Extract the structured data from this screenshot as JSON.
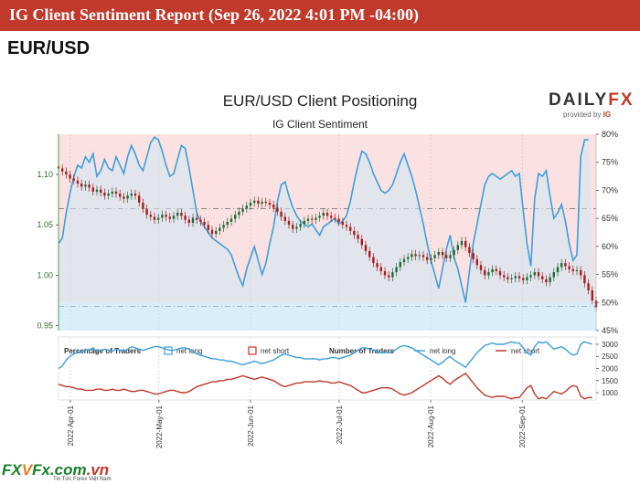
{
  "header": {
    "report_title": "IG Client Sentiment Report (Sep 26, 2022 4:01 PM -04:00)",
    "pair": "EUR/USD"
  },
  "logo": {
    "word_a": "DAILY",
    "word_b": "FX",
    "provided_by": "provided by",
    "ig": "IG"
  },
  "footer": {
    "brand_a": "FX",
    "brand_x": "V",
    "brand_b": "Fx.com",
    "brand_dom": ".vn",
    "tagline": "Tin Tức Forex Việt Nam"
  },
  "colors": {
    "long": "#3d9fd9",
    "short": "#c0392b",
    "bull_candle": "#1b6b3a",
    "bear_candle": "#a31d1d",
    "long_zone": "#e3f3fc",
    "short_zone": "#fbe1e1"
  },
  "chart_data": [
    {
      "type": "candlestick+line",
      "title": "EUR/USD Client Positioning",
      "subtitle": "IG Client Sentiment",
      "x_start": "2022-03-28",
      "x_end": "2022-09-26",
      "left_axis": {
        "ticks": [
          "1.10",
          "1.05",
          "1.00",
          "0.95"
        ],
        "ylim": [
          0.945,
          1.14
        ]
      },
      "right_axis": {
        "ticks": [
          "80%",
          "75%",
          "70%",
          "65%",
          "60%",
          "55%",
          "50%",
          "45%"
        ],
        "ylim": [
          45,
          80
        ]
      },
      "price_dashed_levels": [
        1.066,
        0.969
      ],
      "price_close": [
        1.106,
        1.103,
        1.1,
        1.096,
        1.094,
        1.091,
        1.088,
        1.09,
        1.087,
        1.083,
        1.085,
        1.082,
        1.079,
        1.081,
        1.083,
        1.081,
        1.078,
        1.076,
        1.079,
        1.081,
        1.079,
        1.072,
        1.066,
        1.06,
        1.058,
        1.055,
        1.057,
        1.06,
        1.058,
        1.056,
        1.059,
        1.062,
        1.059,
        1.055,
        1.052,
        1.057,
        1.055,
        1.053,
        1.05,
        1.045,
        1.041,
        1.044,
        1.047,
        1.05,
        1.053,
        1.056,
        1.06,
        1.063,
        1.066,
        1.069,
        1.072,
        1.074,
        1.071,
        1.073,
        1.072,
        1.07,
        1.067,
        1.063,
        1.058,
        1.054,
        1.05,
        1.046,
        1.048,
        1.051,
        1.054,
        1.056,
        1.055,
        1.057,
        1.059,
        1.062,
        1.059,
        1.057,
        1.056,
        1.053,
        1.05,
        1.048,
        1.044,
        1.04,
        1.036,
        1.03,
        1.024,
        1.018,
        1.012,
        1.008,
        1.004,
        1.0,
        0.998,
        1.003,
        1.008,
        1.013,
        1.016,
        1.018,
        1.021,
        1.019,
        1.02,
        1.018,
        1.015,
        1.017,
        1.02,
        1.023,
        1.02,
        1.017,
        1.02,
        1.025,
        1.03,
        1.034,
        1.028,
        1.022,
        1.016,
        1.01,
        1.005,
        1.0,
        1.003,
        1.006,
        1.004,
        1.0,
        0.998,
        0.996,
        0.997,
        0.999,
        0.997,
        0.995,
        0.998,
        1.0,
        1.003,
        0.999,
        0.996,
        0.993,
        0.998,
        1.003,
        1.008,
        1.012,
        1.009,
        1.006,
        1.004,
        1.005,
        1.0,
        0.992,
        0.985,
        0.975,
        0.968
      ],
      "net_long_pct": [
        60.5,
        61.5,
        66,
        69.5,
        72.5,
        74.5,
        74,
        76,
        75,
        76.5,
        72.5,
        73.5,
        75.5,
        74,
        73.5,
        76,
        74.5,
        73,
        76,
        78,
        76.5,
        74.5,
        73.5,
        76,
        78.5,
        79.5,
        79,
        77,
        74.5,
        72.5,
        73,
        75.5,
        78,
        77.5,
        74,
        70,
        66,
        64.5,
        63.5,
        62.5,
        61.5,
        61,
        60.5,
        60,
        59.5,
        58.5,
        56.5,
        54.5,
        53,
        56,
        58,
        60,
        57.5,
        55,
        57,
        60.5,
        63.5,
        68,
        71,
        71.5,
        69,
        67,
        65.5,
        64.5,
        64,
        63.5,
        64,
        63,
        62,
        63.5,
        64,
        64.5,
        65,
        64,
        64.5,
        65.5,
        68,
        71.5,
        74.5,
        77,
        76.5,
        75,
        73,
        71.5,
        70,
        69.5,
        70,
        71,
        73,
        75,
        76.5,
        74.5,
        72.5,
        70,
        67,
        64,
        60.5,
        57.5,
        55,
        52.5,
        56,
        59.5,
        62,
        58,
        56,
        53,
        50,
        55.5,
        60.5,
        64,
        67.5,
        71,
        72.5,
        73,
        72.5,
        72,
        72.5,
        73,
        73.5,
        72.5,
        73,
        66.5,
        60.5,
        56.5,
        68.5,
        73,
        72.5,
        73.5,
        69,
        65,
        66,
        67.5,
        64.5,
        60.5,
        57.5,
        58.5,
        76,
        79,
        79
      ],
      "legend": {
        "pct_label": "Percentage of Traders",
        "num_label": "Number of Traders",
        "net_long": "net long",
        "net_short": "net short"
      },
      "traders_axis": {
        "ticks": [
          "3000",
          "2500",
          "2000",
          "1500",
          "1000"
        ],
        "ylim": [
          700,
          3300
        ]
      },
      "traders_net_long": [
        2000,
        2100,
        2350,
        2500,
        2600,
        2700,
        2650,
        2800,
        2750,
        2850,
        2700,
        2750,
        2800,
        2750,
        2700,
        2800,
        2750,
        2700,
        2800,
        2900,
        2850,
        2800,
        2750,
        2800,
        2850,
        2900,
        2900,
        2850,
        2800,
        2750,
        2750,
        2800,
        2850,
        2850,
        2800,
        2700,
        2600,
        2550,
        2500,
        2450,
        2400,
        2400,
        2350,
        2350,
        2300,
        2300,
        2250,
        2200,
        2150,
        2200,
        2250,
        2300,
        2250,
        2200,
        2250,
        2300,
        2350,
        2450,
        2550,
        2600,
        2550,
        2500,
        2450,
        2450,
        2400,
        2400,
        2400,
        2400,
        2350,
        2400,
        2400,
        2450,
        2450,
        2400,
        2450,
        2500,
        2550,
        2650,
        2750,
        2850,
        2850,
        2800,
        2750,
        2700,
        2650,
        2650,
        2650,
        2700,
        2800,
        2900,
        2950,
        2900,
        2850,
        2750,
        2650,
        2550,
        2450,
        2350,
        2250,
        2150,
        2250,
        2400,
        2500,
        2350,
        2250,
        2150,
        2050,
        2250,
        2450,
        2650,
        2800,
        2950,
        3000,
        3050,
        3000,
        3000,
        3000,
        3050,
        3100,
        3050,
        3050,
        2850,
        2650,
        2550,
        2900,
        3100,
        3050,
        3100,
        2950,
        2800,
        2850,
        2900,
        2800,
        2650,
        2550,
        2600,
        3000,
        3100,
        3050,
        3000
      ],
      "traders_net_short": [
        1350,
        1300,
        1250,
        1250,
        1200,
        1150,
        1150,
        1100,
        1100,
        1100,
        1150,
        1150,
        1100,
        1100,
        1150,
        1100,
        1100,
        1150,
        1100,
        1050,
        1050,
        1100,
        1100,
        1050,
        1000,
        950,
        950,
        1000,
        1050,
        1100,
        1100,
        1050,
        1000,
        1000,
        1050,
        1150,
        1250,
        1300,
        1350,
        1400,
        1450,
        1450,
        1500,
        1500,
        1550,
        1550,
        1600,
        1650,
        1700,
        1650,
        1600,
        1550,
        1600,
        1650,
        1600,
        1550,
        1500,
        1400,
        1300,
        1250,
        1300,
        1350,
        1400,
        1400,
        1450,
        1450,
        1450,
        1450,
        1500,
        1450,
        1450,
        1400,
        1400,
        1450,
        1400,
        1350,
        1300,
        1200,
        1100,
        1000,
        1000,
        1050,
        1100,
        1150,
        1200,
        1200,
        1200,
        1150,
        1050,
        950,
        900,
        950,
        1000,
        1100,
        1200,
        1300,
        1400,
        1500,
        1600,
        1700,
        1600,
        1450,
        1350,
        1500,
        1600,
        1700,
        1800,
        1600,
        1400,
        1200,
        1050,
        900,
        850,
        800,
        850,
        850,
        850,
        800,
        750,
        800,
        800,
        1000,
        1200,
        1300,
        950,
        750,
        800,
        750,
        900,
        1050,
        1000,
        950,
        1050,
        1200,
        1300,
        1250,
        850,
        750,
        800,
        800
      ],
      "x_ticks": [
        {
          "label": "2022-Apr-01",
          "date": "2022-04-01"
        },
        {
          "label": "2022-May-01",
          "date": "2022-05-01"
        },
        {
          "label": "2022-Jun-01",
          "date": "2022-06-01"
        },
        {
          "label": "2022-Jul-01",
          "date": "2022-07-01"
        },
        {
          "label": "2022-Aug-01",
          "date": "2022-08-01"
        },
        {
          "label": "2022-Sep-01",
          "date": "2022-09-01"
        }
      ]
    }
  ]
}
